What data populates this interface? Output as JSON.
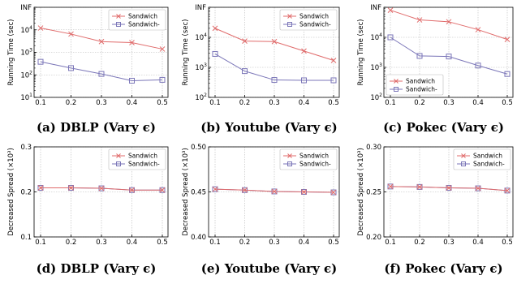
{
  "colors": {
    "sandwich": "#e06b6b",
    "sandwich_minus": "#7b76b8",
    "grid": "#b8b8b8"
  },
  "chart_data": [
    {
      "type": "line",
      "caption": "(a) DBLP (Vary ϵ)",
      "ylabel": "Running Time (sec)",
      "yscale": "log",
      "ylim": [
        10,
        100000
      ],
      "yticks": [
        {
          "v": 10,
          "t": "10",
          "e": "1"
        },
        {
          "v": 100,
          "t": "10",
          "e": "2"
        },
        {
          "v": 1000,
          "t": "10",
          "e": "3"
        },
        {
          "v": 10000,
          "t": "10",
          "e": "4"
        },
        {
          "v": 100000,
          "t": "INF"
        }
      ],
      "x": [
        0.1,
        0.2,
        0.3,
        0.4,
        0.5
      ],
      "xticks": [
        "0.1",
        "0.2",
        "0.3",
        "0.4",
        "0.5"
      ],
      "legend_pos": "top-right",
      "series": [
        {
          "name": "Sandwich",
          "values": [
            12000,
            6500,
            3000,
            2700,
            1400
          ]
        },
        {
          "name": "Sandwich-",
          "values": [
            380,
            200,
            110,
            55,
            60
          ]
        }
      ]
    },
    {
      "type": "line",
      "caption": "(b) Youtube (Vary ϵ)",
      "ylabel": "Running Time (sec)",
      "yscale": "log",
      "ylim": [
        100,
        100000
      ],
      "yticks": [
        {
          "v": 100,
          "t": "10",
          "e": "2"
        },
        {
          "v": 1000,
          "t": "10",
          "e": "3"
        },
        {
          "v": 10000,
          "t": "10",
          "e": "4"
        },
        {
          "v": 100000,
          "t": "INF"
        }
      ],
      "x": [
        0.1,
        0.2,
        0.3,
        0.4,
        0.5
      ],
      "xticks": [
        "0.1",
        "0.2",
        "0.3",
        "0.4",
        "0.5"
      ],
      "legend_pos": "top-right",
      "series": [
        {
          "name": "Sandwich",
          "values": [
            20000,
            7500,
            7200,
            3500,
            1700
          ]
        },
        {
          "name": "Sandwich-",
          "values": [
            2800,
            750,
            380,
            370,
            370
          ]
        }
      ]
    },
    {
      "type": "line",
      "caption": "(c) Pokec (Vary ϵ)",
      "ylabel": "Running Time (sec)",
      "yscale": "log",
      "ylim": [
        100,
        100000
      ],
      "yticks": [
        {
          "v": 100,
          "t": "10",
          "e": "2"
        },
        {
          "v": 1000,
          "t": "10",
          "e": "3"
        },
        {
          "v": 10000,
          "t": "10",
          "e": "4"
        },
        {
          "v": 100000,
          "t": "INF"
        }
      ],
      "x": [
        0.1,
        0.2,
        0.3,
        0.4,
        0.5
      ],
      "xticks": [
        "0.1",
        "0.2",
        "0.3",
        "0.4",
        "0.5"
      ],
      "legend_pos": "bottom-left",
      "series": [
        {
          "name": "Sandwich",
          "values": [
            80000,
            38000,
            33000,
            18000,
            8500
          ]
        },
        {
          "name": "Sandwich-",
          "values": [
            10000,
            2400,
            2300,
            1150,
            600
          ]
        }
      ]
    },
    {
      "type": "line",
      "caption": "(d) DBLP (Vary ϵ)",
      "ylabel": "Decreased Spread (×10³)",
      "yscale": "linear",
      "ylim": [
        0.1,
        0.3
      ],
      "yticks": [
        {
          "v": 0.1,
          "t": "0.1"
        },
        {
          "v": 0.2,
          "t": "0.2"
        },
        {
          "v": 0.3,
          "t": "0.3"
        }
      ],
      "x": [
        0.1,
        0.2,
        0.3,
        0.4,
        0.5
      ],
      "xticks": [
        "0.1",
        "0.2",
        "0.3",
        "0.4",
        "0.5"
      ],
      "legend_pos": "top-right",
      "series": [
        {
          "name": "Sandwich",
          "values": [
            0.209,
            0.209,
            0.208,
            0.204,
            0.204
          ]
        },
        {
          "name": "Sandwich-",
          "values": [
            0.209,
            0.209,
            0.208,
            0.204,
            0.204
          ]
        }
      ]
    },
    {
      "type": "line",
      "caption": "(e) Youtube (Vary ϵ)",
      "ylabel": "Decreased Spread (×10³)",
      "yscale": "linear",
      "ylim": [
        0.4,
        0.5
      ],
      "yticks": [
        {
          "v": 0.4,
          "t": "0.40"
        },
        {
          "v": 0.45,
          "t": "0.45"
        },
        {
          "v": 0.5,
          "t": "0.50"
        }
      ],
      "x": [
        0.1,
        0.2,
        0.3,
        0.4,
        0.5
      ],
      "xticks": [
        "0.1",
        "0.2",
        "0.3",
        "0.4",
        "0.5"
      ],
      "legend_pos": "top-right",
      "series": [
        {
          "name": "Sandwich",
          "values": [
            0.453,
            0.452,
            0.4505,
            0.45,
            0.4495
          ]
        },
        {
          "name": "Sandwich-",
          "values": [
            0.453,
            0.452,
            0.4505,
            0.45,
            0.4495
          ]
        }
      ]
    },
    {
      "type": "line",
      "caption": "(f) Pokec (Vary ϵ)",
      "ylabel": "Decreased Spread (×10³)",
      "yscale": "linear",
      "ylim": [
        0.2,
        0.3
      ],
      "yticks": [
        {
          "v": 0.2,
          "t": "0.20"
        },
        {
          "v": 0.25,
          "t": "0.25"
        },
        {
          "v": 0.3,
          "t": "0.30"
        }
      ],
      "x": [
        0.1,
        0.2,
        0.3,
        0.4,
        0.5
      ],
      "xticks": [
        "0.1",
        "0.2",
        "0.3",
        "0.4",
        "0.5"
      ],
      "legend_pos": "top-right",
      "series": [
        {
          "name": "Sandwich",
          "values": [
            0.256,
            0.2555,
            0.2545,
            0.254,
            0.2515
          ]
        },
        {
          "name": "Sandwich-",
          "values": [
            0.256,
            0.2555,
            0.2545,
            0.254,
            0.2515
          ]
        }
      ]
    }
  ]
}
